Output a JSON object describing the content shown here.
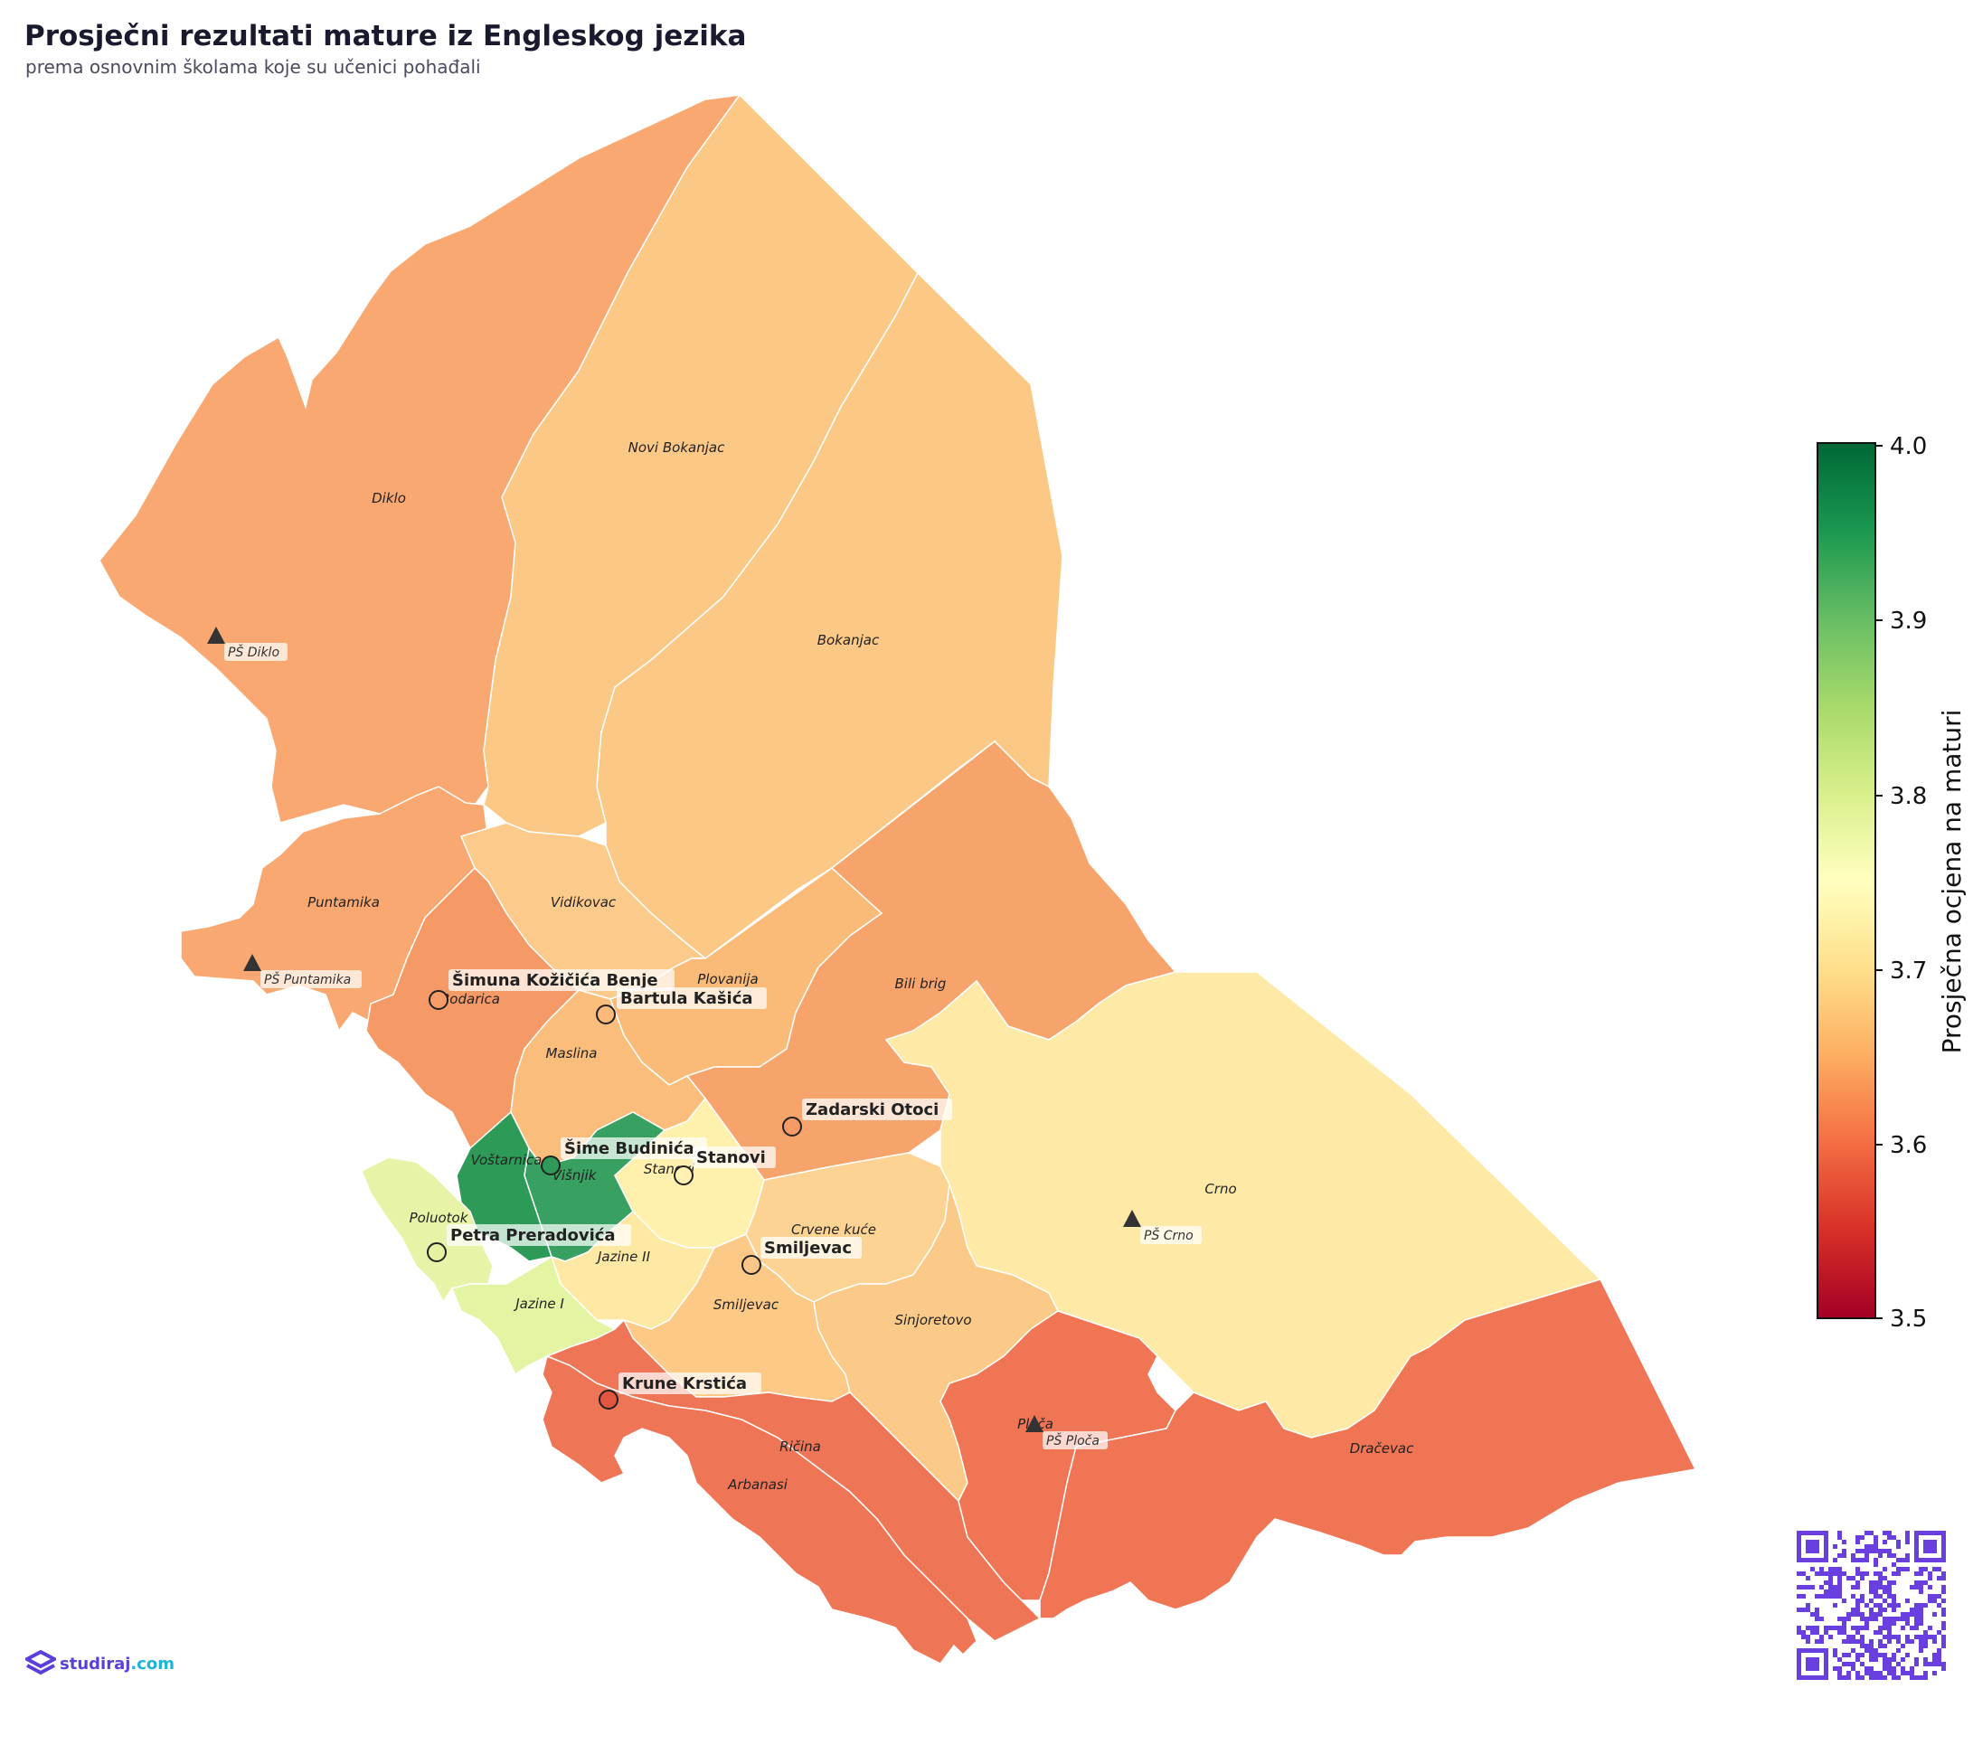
{
  "title": "Prosječni rezultati mature iz Engleskog jezika",
  "subtitle": "prema osnovnim školama koje su učenici pohađali",
  "colorbar": {
    "label": "Prosječna ocjena na maturi",
    "min": 3.5,
    "max": 4.0,
    "ticks": [
      "4.0",
      "3.9",
      "3.8",
      "3.7",
      "3.6",
      "3.5"
    ],
    "colormap": "RdYlGn",
    "stops": [
      "#a50026",
      "#d73027",
      "#f46d43",
      "#fdae61",
      "#fee08b",
      "#ffffbf",
      "#d9ef8b",
      "#a6d96a",
      "#66bd63",
      "#1a9850",
      "#006837"
    ]
  },
  "districts": [
    {
      "name": "Diklo",
      "color": "#f8a870"
    },
    {
      "name": "Novi Bokanjac",
      "color": "#fcc886"
    },
    {
      "name": "Bokanjac",
      "color": "#fcc886"
    },
    {
      "name": "Puntamika",
      "color": "#f8a870"
    },
    {
      "name": "Vidikovac",
      "color": "#fcca8a"
    },
    {
      "name": "Bodarica",
      "color": "#f59a66"
    },
    {
      "name": "Plovanija",
      "color": "#fbbb78"
    },
    {
      "name": "Bili brig",
      "color": "#f7a46c"
    },
    {
      "name": "Maslina",
      "color": "#fbbd7c"
    },
    {
      "name": "Voštarnica",
      "color": "#2e9a58"
    },
    {
      "name": "Višnjik",
      "color": "#38a060"
    },
    {
      "name": "Stanovi",
      "color": "#fff0ae"
    },
    {
      "name": "Crno",
      "color": "#feeaa6"
    },
    {
      "name": "Poluotok",
      "color": "#e7f4a8"
    },
    {
      "name": "Jazine II",
      "color": "#fee9a4"
    },
    {
      "name": "Crvene kuće",
      "color": "#fdd394"
    },
    {
      "name": "Jazine I",
      "color": "#e3f4a2"
    },
    {
      "name": "Smiljevac",
      "color": "#fcc987"
    },
    {
      "name": "Sinjoretovo",
      "color": "#fcca88"
    },
    {
      "name": "Ričina",
      "color": "#ee7555"
    },
    {
      "name": "Arbanasi",
      "color": "#ee7555"
    },
    {
      "name": "Ploča",
      "color": "#ef7554"
    },
    {
      "name": "Dračevac",
      "color": "#ef7554"
    }
  ],
  "schools": [
    {
      "name": "Šimuna Kožičića Benje",
      "color": "#f89c6a"
    },
    {
      "name": "Bartula Kašića",
      "color": "#fbba7a"
    },
    {
      "name": "Zadarski Otoci",
      "color": "#f69a66"
    },
    {
      "name": "Šime Budinića",
      "color": "#2f9a58"
    },
    {
      "name": "Stanovi",
      "color": "#fff1b2"
    },
    {
      "name": "Petra Preradovića",
      "color": "#e6f2a0"
    },
    {
      "name": "Smiljevac",
      "color": "#fcc688"
    },
    {
      "name": "Krune Krstića",
      "color": "#e2553e"
    }
  ],
  "regional_schools": [
    "PŠ Diklo",
    "PŠ Puntamika",
    "PŠ Crno",
    "PŠ Ploča"
  ],
  "brand": {
    "name": "studiraj",
    "tld": ".com"
  }
}
